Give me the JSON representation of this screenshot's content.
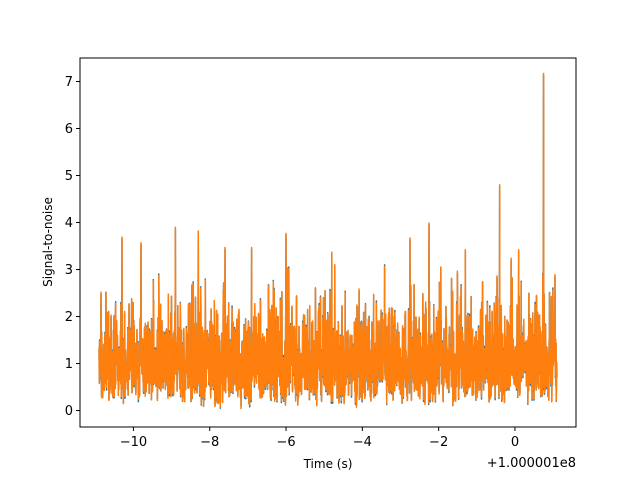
{
  "chart_data": {
    "type": "line",
    "title": "",
    "xlabel": "Time (s)",
    "ylabel": "Signal-to-noise",
    "offset_text": "+1.000001e8",
    "xlim": [
      -11.4,
      1.6
    ],
    "ylim": [
      -0.35,
      7.5
    ],
    "x_ticks": [
      -10,
      -8,
      -6,
      -4,
      -2,
      0
    ],
    "x_tick_labels": [
      "−10",
      "−8",
      "−6",
      "−4",
      "−2",
      "0"
    ],
    "y_ticks": [
      0,
      1,
      2,
      3,
      4,
      5,
      6,
      7
    ],
    "y_tick_labels": [
      "0",
      "1",
      "2",
      "3",
      "4",
      "5",
      "6",
      "7"
    ],
    "grid": false,
    "legend": "none",
    "colors": {
      "series_1": "#1f77b4",
      "series_2": "#ff7f0e"
    },
    "x_range": [
      -10.9,
      1.1
    ],
    "notable_peaks": [
      {
        "x": 0.75,
        "y": 7.15
      },
      {
        "x": -0.4,
        "y": 4.78
      },
      {
        "x": -2.25,
        "y": 3.97
      },
      {
        "x": -8.3,
        "y": 3.8
      },
      {
        "x": -6.0,
        "y": 3.75
      },
      {
        "x": -8.9,
        "y": 3.88
      },
      {
        "x": -10.3,
        "y": 3.67
      },
      {
        "x": -9.8,
        "y": 3.55
      },
      {
        "x": -7.6,
        "y": 3.45
      },
      {
        "x": -6.9,
        "y": 3.45
      },
      {
        "x": -4.8,
        "y": 3.35
      },
      {
        "x": -2.75,
        "y": 3.65
      },
      {
        "x": -1.3,
        "y": 3.4
      },
      {
        "x": -0.1,
        "y": 3.22
      },
      {
        "x": 0.1,
        "y": 3.4
      },
      {
        "x": -10.85,
        "y": 2.5
      },
      {
        "x": 1.05,
        "y": 2.87
      }
    ],
    "series": [
      {
        "values_range": [
          0.05,
          7.15
        ]
      },
      {
        "values_range": [
          0.0,
          7.17
        ]
      }
    ]
  }
}
